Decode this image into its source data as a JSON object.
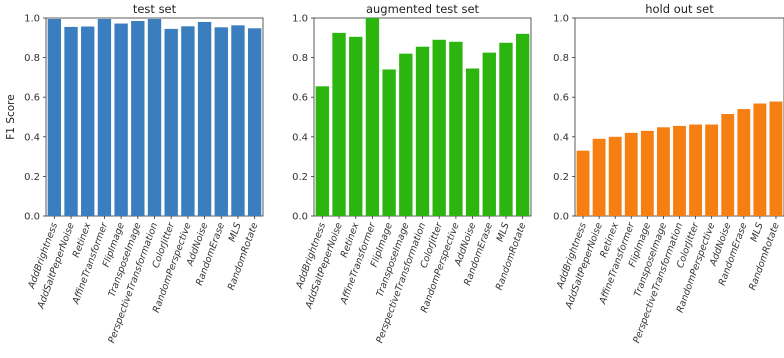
{
  "chart_data": [
    {
      "type": "bar",
      "title": "test set",
      "ylabel": "F1 Score",
      "ylim": [
        0,
        1.0
      ],
      "yticks": [
        "0.0",
        "0.2",
        "0.4",
        "0.6",
        "0.8",
        "1.0"
      ],
      "color": "#3a7ebf",
      "categories": [
        "AddBrightness",
        "AddSaltPeperNoise",
        "Retinex",
        "AffineTransformer",
        "FlipImage",
        "TransposeImage",
        "PerspectiveTransformation",
        "ColorJitter",
        "RandomPerspective",
        "AddNoise",
        "RandomErase",
        "MLS",
        "RandomRotate"
      ],
      "values": [
        0.995,
        0.955,
        0.957,
        0.995,
        0.972,
        0.985,
        0.995,
        0.945,
        0.958,
        0.98,
        0.953,
        0.963,
        0.948
      ]
    },
    {
      "type": "bar",
      "title": "augmented test set",
      "ylabel": "",
      "ylim": [
        0,
        1.0
      ],
      "yticks": [
        "0.0",
        "0.2",
        "0.4",
        "0.6",
        "0.8",
        "1.0"
      ],
      "color": "#2db50f",
      "categories": [
        "AddBrightness",
        "AddSaltPeperNoise",
        "Retinex",
        "AffineTransformer",
        "FlipImage",
        "TransposeImage",
        "PerspectiveTransformation",
        "ColorJitter",
        "RandomPerspective",
        "AddNoise",
        "RandomErase",
        "MLS",
        "RandomRotate"
      ],
      "values": [
        0.655,
        0.925,
        0.905,
        1.0,
        0.74,
        0.82,
        0.855,
        0.89,
        0.88,
        0.745,
        0.825,
        0.875,
        0.92
      ]
    },
    {
      "type": "bar",
      "title": "hold out set",
      "ylabel": "",
      "ylim": [
        0,
        1.0
      ],
      "yticks": [
        "0.0",
        "0.2",
        "0.4",
        "0.6",
        "0.8",
        "1.0"
      ],
      "color": "#f57f12",
      "categories": [
        "AddBrightness",
        "AddSaltPeperNoise",
        "Retinex",
        "AffineTransformer",
        "FlipImage",
        "TransposeImage",
        "PerspectiveTransformation",
        "ColorJitter",
        "RandomPerspective",
        "AddNoise",
        "RandomErase",
        "MLS",
        "RandomRotate"
      ],
      "values": [
        0.33,
        0.39,
        0.4,
        0.42,
        0.43,
        0.448,
        0.455,
        0.462,
        0.462,
        0.515,
        0.54,
        0.568,
        0.578
      ]
    }
  ]
}
